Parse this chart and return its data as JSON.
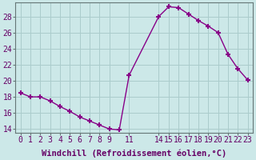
{
  "x": [
    0,
    1,
    2,
    3,
    4,
    5,
    6,
    7,
    8,
    9,
    10,
    11,
    14,
    15,
    16,
    17,
    18,
    19,
    20,
    21,
    22,
    23
  ],
  "y": [
    18.5,
    18.0,
    18.0,
    17.5,
    16.8,
    16.2,
    15.5,
    15.0,
    14.5,
    14.0,
    13.9,
    20.7,
    28.0,
    29.2,
    29.1,
    28.3,
    27.5,
    26.8,
    26.0,
    23.3,
    21.5,
    20.1
  ],
  "line_color": "#880088",
  "marker": "+",
  "marker_size": 5,
  "marker_lw": 1.5,
  "background_color": "#cce8e8",
  "plot_bg_color": "#cce8e8",
  "grid_color": "#aacccc",
  "xlabel": "Windchill (Refroidissement éolien,°C)",
  "xlabel_fontsize": 7.5,
  "xlim": [
    -0.5,
    23.5
  ],
  "ylim": [
    13.5,
    29.7
  ],
  "xticks": [
    0,
    1,
    2,
    3,
    4,
    5,
    6,
    7,
    8,
    9,
    11,
    14,
    15,
    16,
    17,
    18,
    19,
    20,
    21,
    22,
    23
  ],
  "yticks": [
    14,
    16,
    18,
    20,
    22,
    24,
    26,
    28
  ],
  "tick_fontsize": 7,
  "figsize": [
    3.2,
    2.0
  ],
  "dpi": 100,
  "spine_color": "#667777",
  "linewidth": 1.0
}
